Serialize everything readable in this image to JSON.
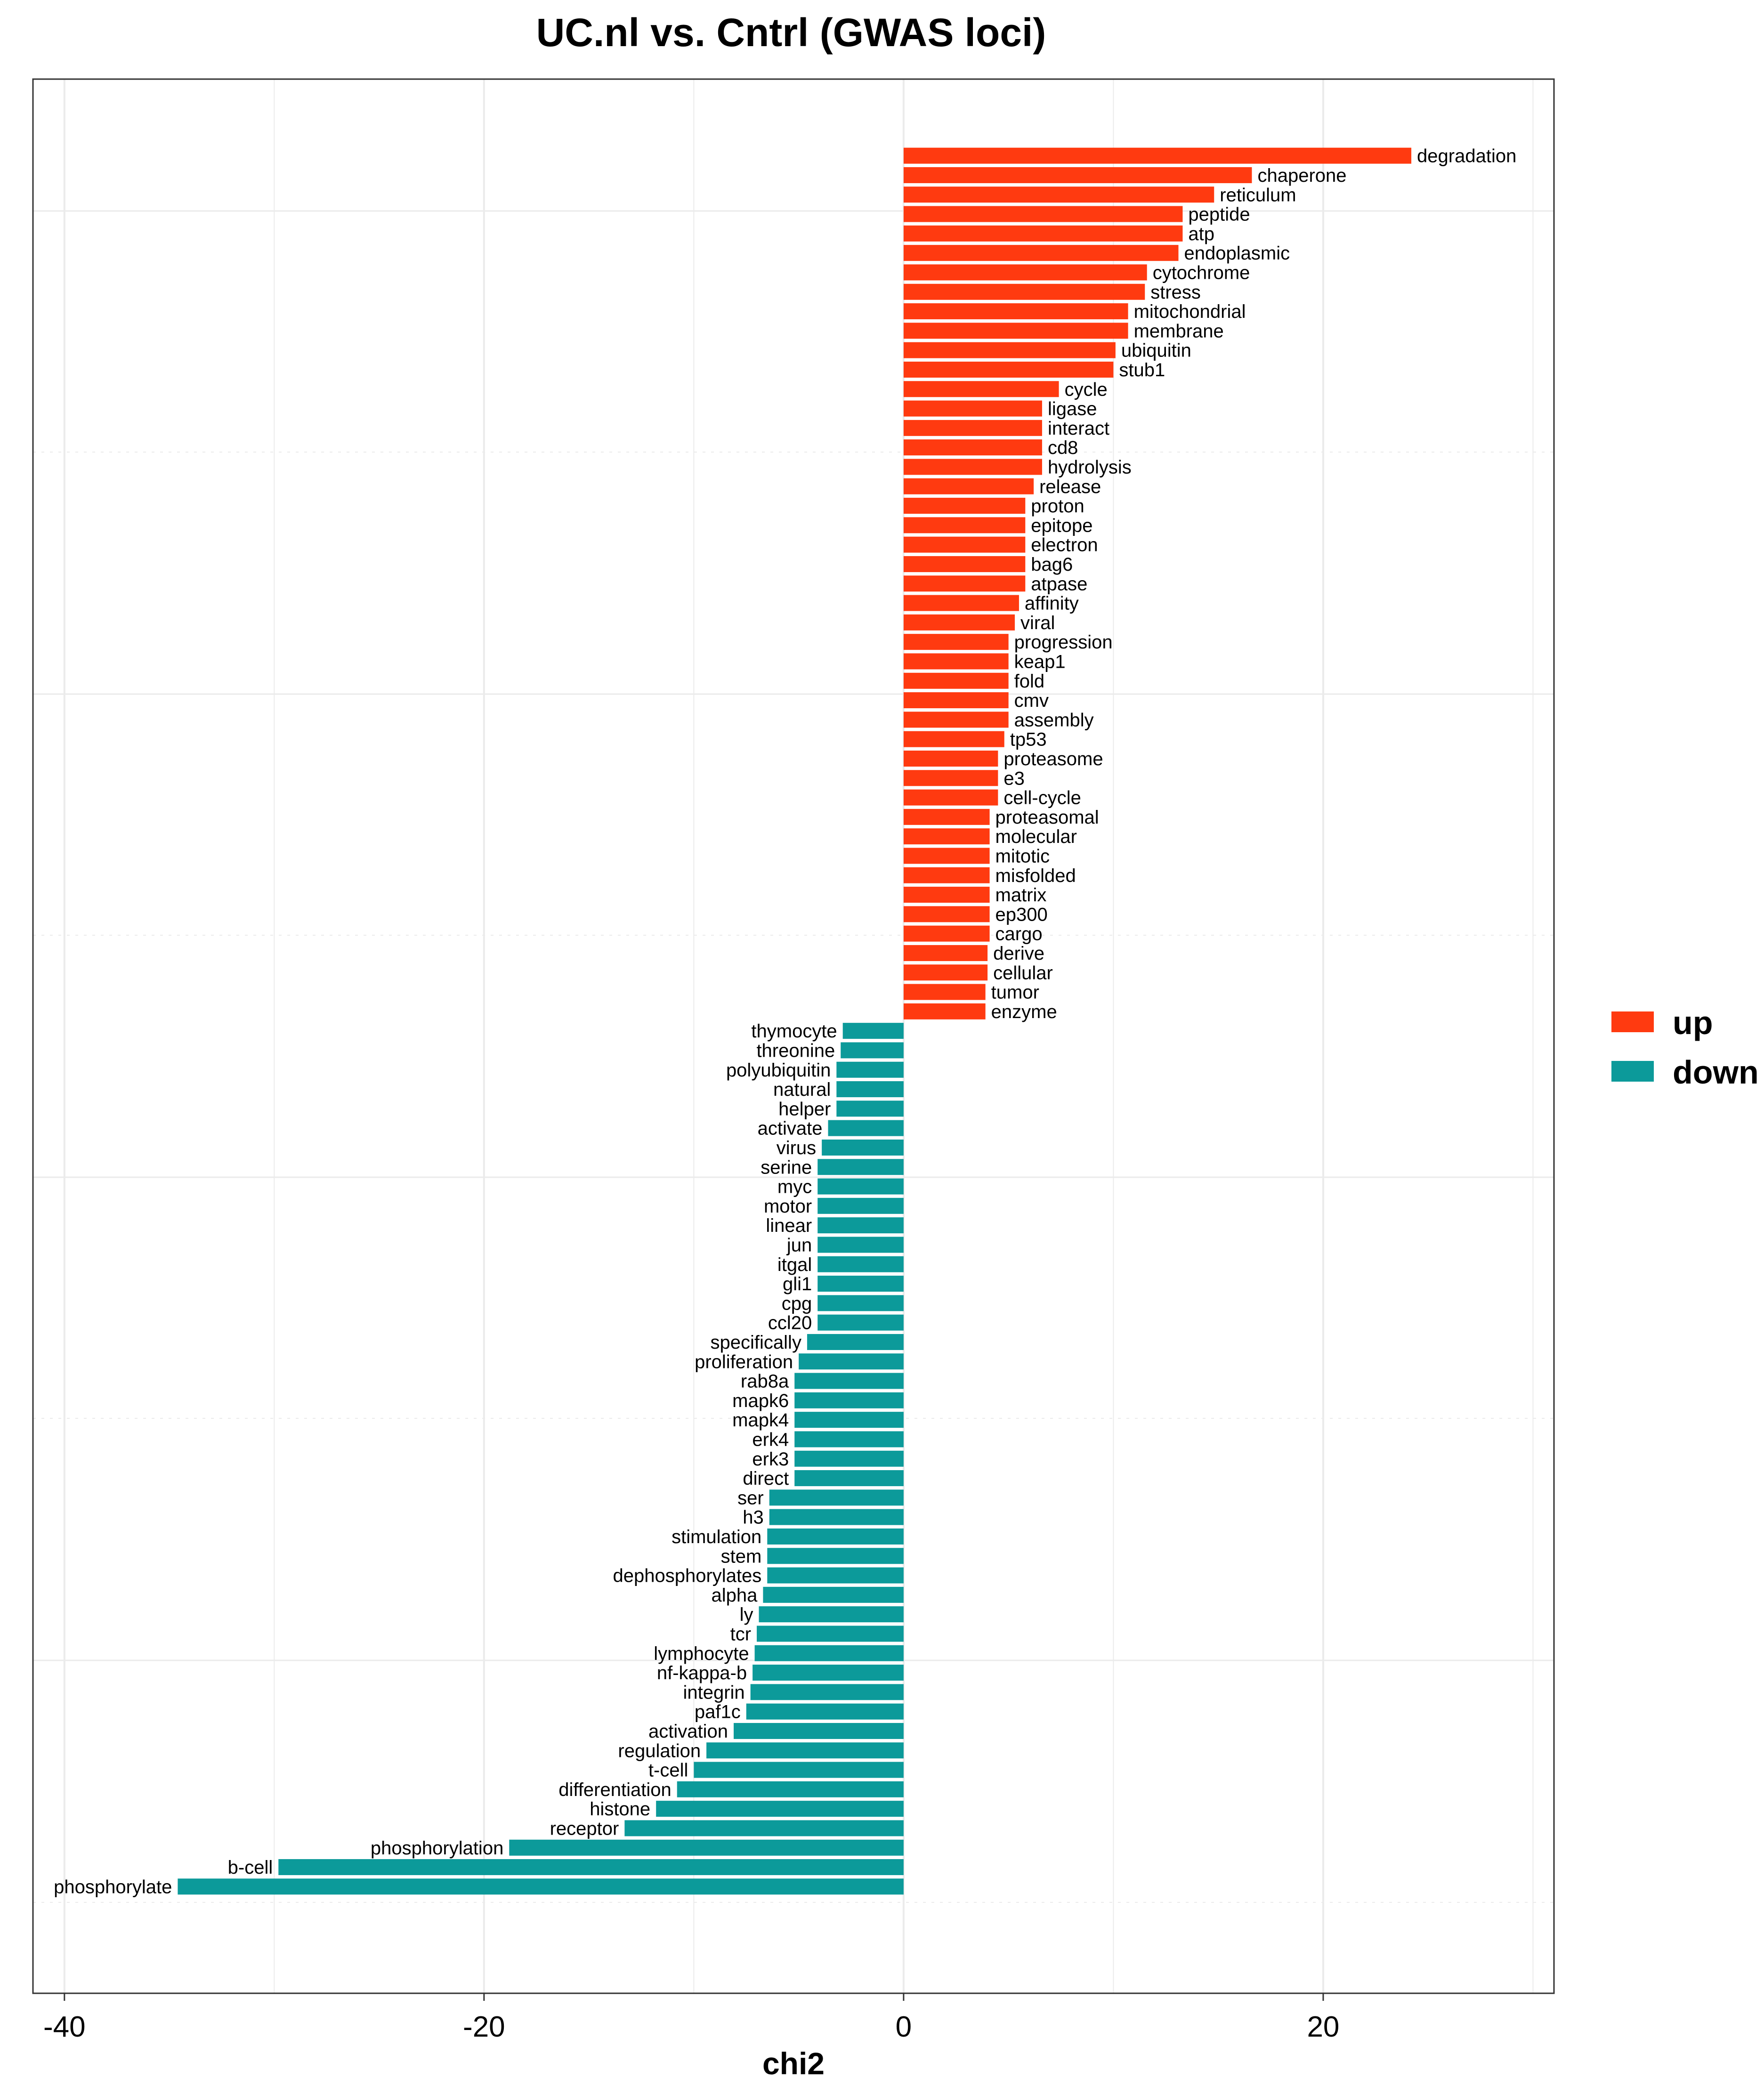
{
  "chart_data": {
    "type": "bar",
    "orientation": "horizontal",
    "title": "UC.nl vs. Cntrl (GWAS loci)",
    "xlabel": "chi2",
    "ylabel": "",
    "xlim": [
      -41.5,
      31
    ],
    "x_ticks": [
      -40,
      -20,
      0,
      20
    ],
    "grid": true,
    "legend_position": "right",
    "colors": {
      "up": "#ff3a10",
      "down": "#0c9a9a",
      "grid": "#ebebeb",
      "frame": "#333333"
    },
    "legend": [
      {
        "key": "up",
        "label": "up"
      },
      {
        "key": "down",
        "label": "down"
      }
    ],
    "series": [
      {
        "name": "up",
        "categories": [
          "degradation",
          "chaperone",
          "reticulum",
          "peptide",
          "atp",
          "endoplasmic",
          "cytochrome",
          "stress",
          "mitochondrial",
          "membrane",
          "ubiquitin",
          "stub1",
          "cycle",
          "ligase",
          "interact",
          "cd8",
          "hydrolysis",
          "release",
          "proton",
          "epitope",
          "electron",
          "bag6",
          "atpase",
          "affinity",
          "viral",
          "progression",
          "keap1",
          "fold",
          "cmv",
          "assembly",
          "tp53",
          "proteasome",
          "e3",
          "cell-cycle",
          "proteasomal",
          "molecular",
          "mitotic",
          "misfolded",
          "matrix",
          "ep300",
          "cargo",
          "derive",
          "cellular",
          "tumor",
          "enzyme"
        ],
        "values": [
          24.2,
          16.6,
          14.8,
          13.3,
          13.3,
          13.1,
          11.6,
          11.5,
          10.7,
          10.7,
          10.1,
          10.0,
          7.4,
          6.6,
          6.6,
          6.6,
          6.6,
          6.2,
          5.8,
          5.8,
          5.8,
          5.8,
          5.8,
          5.5,
          5.3,
          5.0,
          5.0,
          5.0,
          5.0,
          5.0,
          4.8,
          4.5,
          4.5,
          4.5,
          4.1,
          4.1,
          4.1,
          4.1,
          4.1,
          4.1,
          4.1,
          4.0,
          4.0,
          3.9,
          3.9
        ]
      },
      {
        "name": "down",
        "categories": [
          "thymocyte",
          "threonine",
          "polyubiquitin",
          "natural",
          "helper",
          "activate",
          "virus",
          "serine",
          "myc",
          "motor",
          "linear",
          "jun",
          "itgal",
          "gli1",
          "cpg",
          "ccl20",
          "specifically",
          "proliferation",
          "rab8a",
          "mapk6",
          "mapk4",
          "erk4",
          "erk3",
          "direct",
          "ser",
          "h3",
          "stimulation",
          "stem",
          "dephosphorylates",
          "alpha",
          "ly",
          "tcr",
          "lymphocyte",
          "nf-kappa-b",
          "integrin",
          "paf1c",
          "activation",
          "regulation",
          "t-cell",
          "differentiation",
          "histone",
          "receptor",
          "phosphorylation",
          "b-cell",
          "phosphorylate"
        ],
        "values": [
          -2.9,
          -3.0,
          -3.2,
          -3.2,
          -3.2,
          -3.6,
          -3.9,
          -4.1,
          -4.1,
          -4.1,
          -4.1,
          -4.1,
          -4.1,
          -4.1,
          -4.1,
          -4.1,
          -4.6,
          -5.0,
          -5.2,
          -5.2,
          -5.2,
          -5.2,
          -5.2,
          -5.2,
          -6.4,
          -6.4,
          -6.5,
          -6.5,
          -6.5,
          -6.7,
          -6.9,
          -7.0,
          -7.1,
          -7.2,
          -7.3,
          -7.5,
          -8.1,
          -9.4,
          -10.0,
          -10.8,
          -11.8,
          -13.3,
          -18.8,
          -29.8,
          -34.6
        ]
      }
    ]
  }
}
